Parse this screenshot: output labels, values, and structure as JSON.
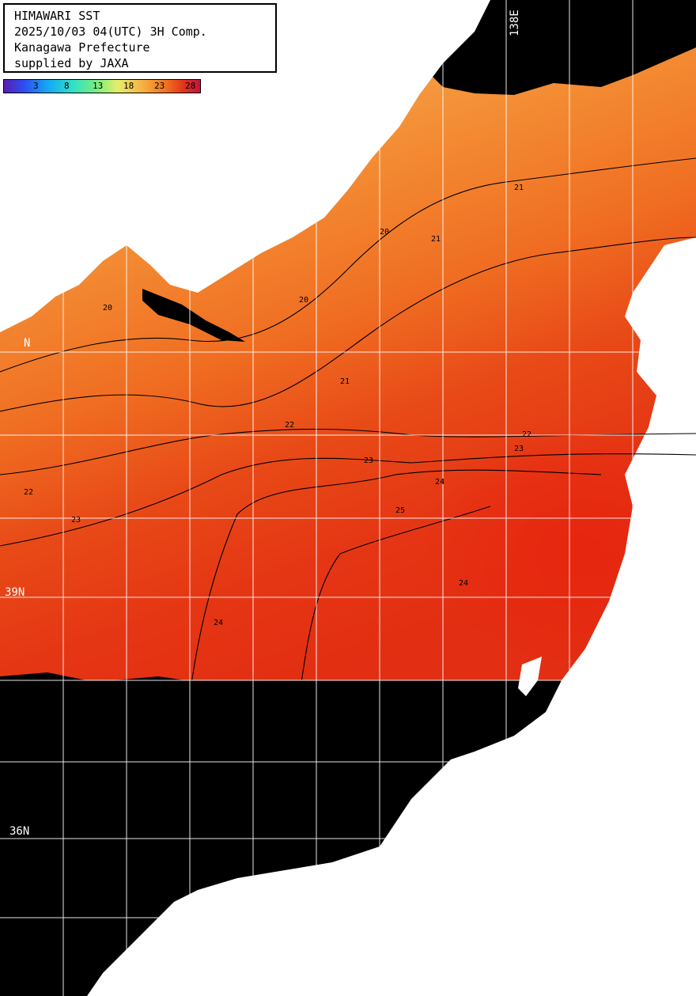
{
  "title_lines": [
    "HIMAWARI SST",
    "2025/10/03 04(UTC) 3H Comp.",
    "Kanagawa Prefecture",
    "supplied by JAXA"
  ],
  "colorbar": {
    "ticks": [
      "3",
      "8",
      "13",
      "18",
      "23",
      "28"
    ]
  },
  "grid_labels": {
    "lat_top": "N",
    "lat_mid": "39N",
    "lat_bottom": "36N",
    "lon": "138E"
  },
  "contour_labels": [
    "20",
    "20",
    "20",
    "21",
    "21",
    "21",
    "22",
    "22",
    "22",
    "23",
    "23",
    "23",
    "24",
    "24",
    "24",
    "25"
  ],
  "colors": {
    "land": "#ffffff",
    "nodata": "#000000",
    "grid": "#ffffff",
    "contour": "#000000"
  }
}
